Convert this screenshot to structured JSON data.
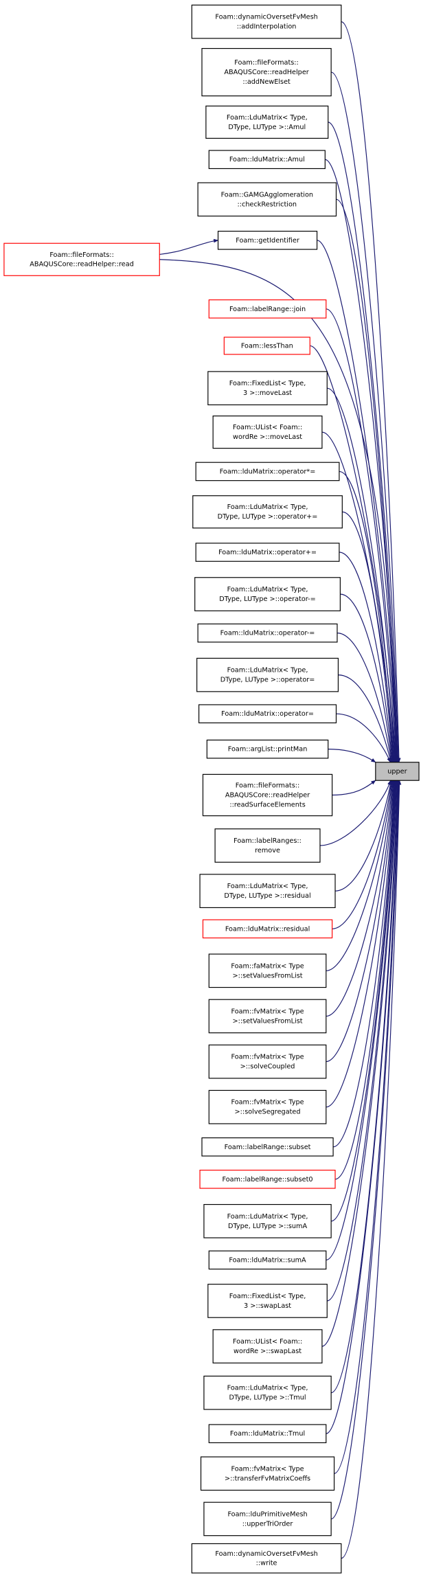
{
  "nodes": [
    {
      "label": [
        "Foam::dynamicOversetFvMesh",
        "::addInterpolation"
      ]
    },
    {
      "label": [
        "Foam::fileFormats::",
        "ABAQUSCore::readHelper",
        "::addNewElset"
      ]
    },
    {
      "label": [
        "Foam::LduMatrix< Type,",
        "DType, LUType >::Amul"
      ]
    },
    {
      "label": [
        "Foam::lduMatrix::Amul"
      ]
    },
    {
      "label": [
        "Foam::GAMGAgglomeration",
        "::checkRestriction"
      ]
    },
    {
      "label": [
        "Foam::getIdentifier"
      ]
    },
    {
      "label": [
        "Foam::fileFormats::",
        "ABAQUSCore::readHelper::read"
      ],
      "border": "red"
    },
    {
      "label": [
        "Foam::labelRange::join"
      ],
      "border": "red"
    },
    {
      "label": [
        "Foam::lessThan"
      ],
      "border": "red"
    },
    {
      "label": [
        "Foam::FixedList< Type,",
        "3 >::moveLast"
      ]
    },
    {
      "label": [
        "Foam::UList< Foam::",
        "wordRe >::moveLast"
      ]
    },
    {
      "label": [
        "Foam::lduMatrix::operator*="
      ]
    },
    {
      "label": [
        "Foam::LduMatrix< Type,",
        "DType, LUType >::operator+="
      ]
    },
    {
      "label": [
        "Foam::lduMatrix::operator+="
      ]
    },
    {
      "label": [
        "Foam::LduMatrix< Type,",
        "DType, LUType >::operator-="
      ]
    },
    {
      "label": [
        "Foam::lduMatrix::operator-="
      ]
    },
    {
      "label": [
        "Foam::LduMatrix< Type,",
        "DType, LUType >::operator="
      ]
    },
    {
      "label": [
        "Foam::lduMatrix::operator="
      ]
    },
    {
      "label": [
        "Foam::argList::printMan"
      ]
    },
    {
      "label": [
        "Foam::fileFormats::",
        "ABAQUSCore::readHelper",
        "::readSurfaceElements"
      ]
    },
    {
      "label": [
        "Foam::labelRanges::",
        "remove"
      ]
    },
    {
      "label": [
        "Foam::LduMatrix< Type,",
        "DType, LUType >::residual"
      ]
    },
    {
      "label": [
        "Foam::lduMatrix::residual"
      ],
      "border": "red"
    },
    {
      "label": [
        "Foam::faMatrix< Type",
        ">::setValuesFromList"
      ]
    },
    {
      "label": [
        "Foam::fvMatrix< Type",
        ">::setValuesFromList"
      ]
    },
    {
      "label": [
        "Foam::fvMatrix< Type",
        ">::solveCoupled"
      ]
    },
    {
      "label": [
        "Foam::fvMatrix< Type",
        ">::solveSegregated"
      ]
    },
    {
      "label": [
        "Foam::labelRange::subset"
      ]
    },
    {
      "label": [
        "Foam::labelRange::subset0"
      ],
      "border": "red"
    },
    {
      "label": [
        "Foam::LduMatrix< Type,",
        "DType, LUType >::sumA"
      ]
    },
    {
      "label": [
        "Foam::lduMatrix::sumA"
      ]
    },
    {
      "label": [
        "Foam::FixedList< Type,",
        "3 >::swapLast"
      ]
    },
    {
      "label": [
        "Foam::UList< Foam::",
        "wordRe >::swapLast"
      ]
    },
    {
      "label": [
        "Foam::LduMatrix< Type,",
        "DType, LUType >::Tmul"
      ]
    },
    {
      "label": [
        "Foam::lduMatrix::Tmul"
      ]
    },
    {
      "label": [
        "Foam::fvMatrix< Type",
        ">::transferFvMatrixCoeffs"
      ]
    },
    {
      "label": [
        "Foam::lduPrimitiveMesh",
        "::upperTriOrder"
      ]
    },
    {
      "label": [
        "Foam::dynamicOversetFvMesh",
        "::write"
      ]
    }
  ],
  "target": {
    "label": [
      "upper"
    ]
  }
}
